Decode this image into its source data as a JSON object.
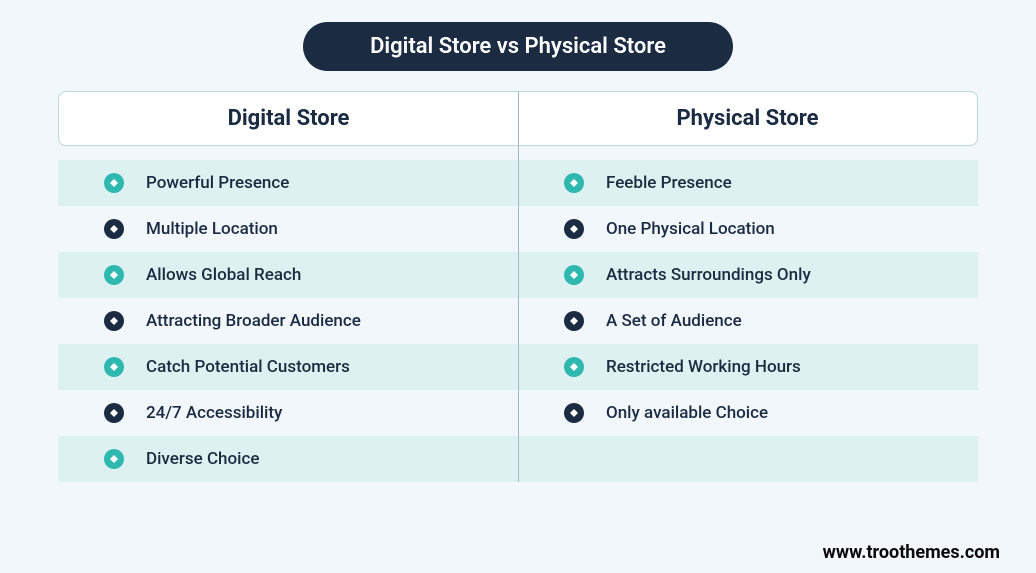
{
  "title": "Digital Store vs Physical Store",
  "colors": {
    "page_bg": "#f2f7fc",
    "pill_bg": "#1a2b42",
    "pill_text": "#ffffff",
    "header_border": "#b9d7da",
    "header_bg": "#ffffff",
    "header_text": "#1a2b42",
    "band_bg": "#def1f1",
    "label_text": "#1a2b42",
    "divider": "#9fb9bd",
    "icon_teal": "#2fb8b0",
    "icon_dark": "#1a2b42",
    "icon_inner": "#ffffff",
    "footer_text": "#0a0a0a"
  },
  "font_sizes": {
    "title": 22,
    "header": 22,
    "row": 17,
    "footer": 18
  },
  "columns": {
    "left": {
      "header": "Digital Store",
      "rows": [
        {
          "label": "Powerful Presence",
          "icon_color": "teal",
          "band": true
        },
        {
          "label": "Multiple Location",
          "icon_color": "dark",
          "band": false
        },
        {
          "label": "Allows Global Reach",
          "icon_color": "teal",
          "band": true
        },
        {
          "label": "Attracting Broader Audience",
          "icon_color": "dark",
          "band": false
        },
        {
          "label": "Catch Potential Customers",
          "icon_color": "teal",
          "band": true
        },
        {
          "label": "24/7 Accessibility",
          "icon_color": "dark",
          "band": false
        },
        {
          "label": "Diverse Choice",
          "icon_color": "teal",
          "band": true
        }
      ]
    },
    "right": {
      "header": "Physical Store",
      "rows": [
        {
          "label": "Feeble Presence",
          "icon_color": "teal",
          "band": true
        },
        {
          "label": "One Physical Location",
          "icon_color": "dark",
          "band": false
        },
        {
          "label": "Attracts Surroundings Only",
          "icon_color": "teal",
          "band": true
        },
        {
          "label": "A Set of Audience",
          "icon_color": "dark",
          "band": false
        },
        {
          "label": "Restricted Working Hours",
          "icon_color": "teal",
          "band": true
        },
        {
          "label": "Only available Choice",
          "icon_color": "dark",
          "band": false
        },
        {
          "label": "",
          "icon_color": "",
          "band": true
        }
      ]
    }
  },
  "footer": "www.troothemes.com"
}
